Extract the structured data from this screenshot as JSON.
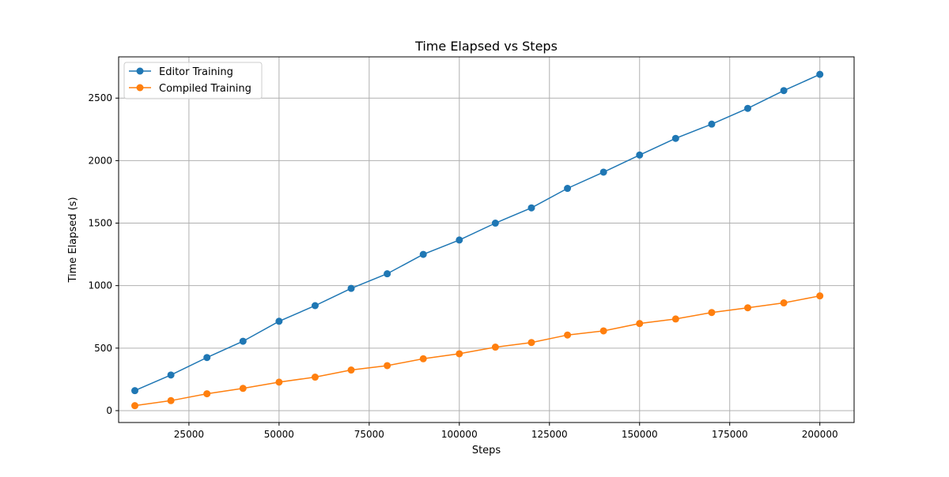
{
  "chart_data": {
    "type": "line",
    "title": "Time Elapsed vs Steps",
    "xlabel": "Steps",
    "ylabel": "Time Elapsed (s)",
    "xlim": [
      5500,
      209500
    ],
    "ylim": [
      -95,
      2830
    ],
    "x_ticks": [
      25000,
      50000,
      75000,
      100000,
      125000,
      150000,
      175000,
      200000
    ],
    "y_ticks": [
      0,
      500,
      1000,
      1500,
      2000,
      2500
    ],
    "grid": true,
    "legend_position": "top-left",
    "x": [
      10000,
      20000,
      30000,
      40000,
      50000,
      60000,
      70000,
      80000,
      90000,
      100000,
      110000,
      120000,
      130000,
      140000,
      150000,
      160000,
      170000,
      180000,
      190000,
      200000
    ],
    "series": [
      {
        "name": "Editor Training",
        "color": "#1f77b4",
        "values": [
          160,
          285,
          425,
          555,
          715,
          840,
          978,
          1095,
          1250,
          1365,
          1500,
          1622,
          1778,
          1908,
          2045,
          2178,
          2292,
          2418,
          2560,
          2690
        ]
      },
      {
        "name": "Compiled Training",
        "color": "#ff7f0e",
        "values": [
          40,
          80,
          135,
          178,
          228,
          268,
          325,
          360,
          415,
          455,
          508,
          545,
          605,
          638,
          697,
          733,
          785,
          823,
          862,
          918
        ]
      }
    ]
  }
}
